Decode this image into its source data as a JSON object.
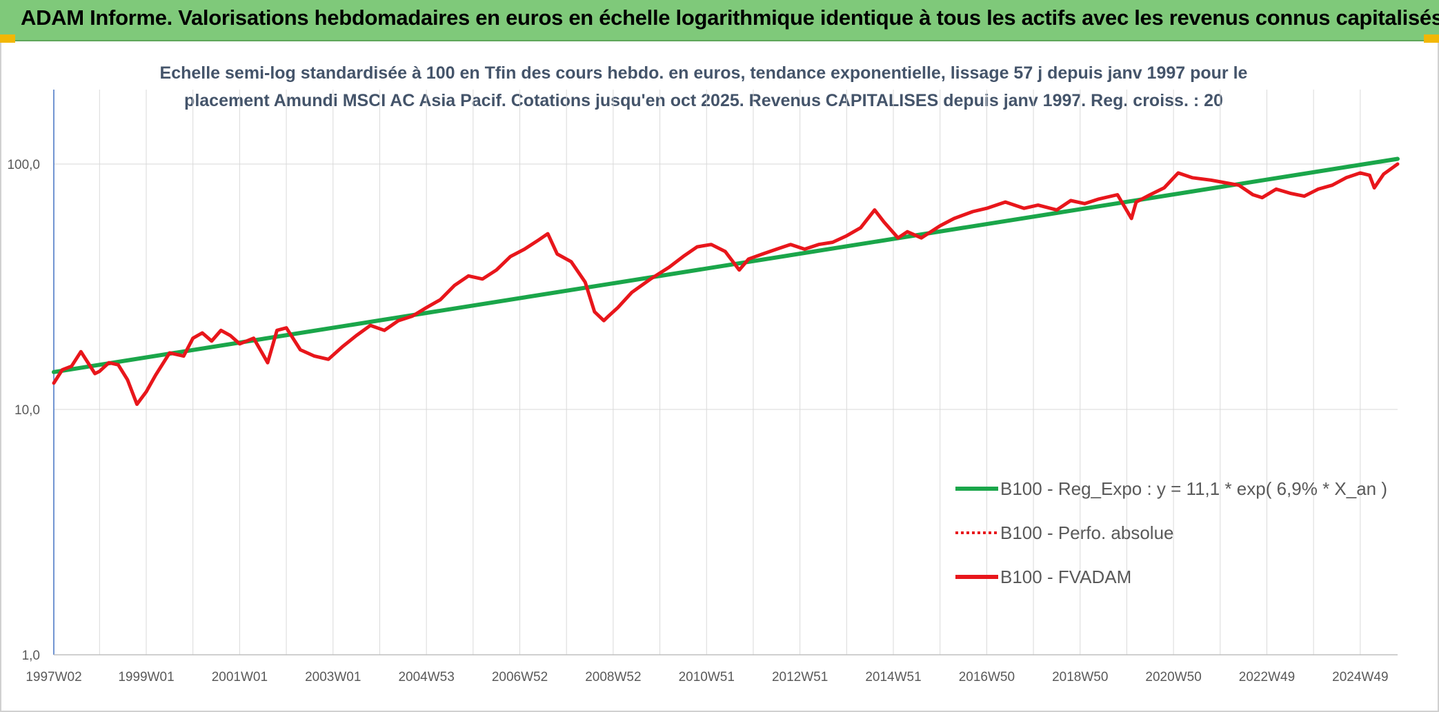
{
  "banner": {
    "title": "ADAM Informe. Valorisations hebdomadaires en euros en échelle logarithmique identique à tous les actifs avec les revenus connus capitalisés"
  },
  "colors": {
    "banner_bg": "#7fc97a",
    "accent_corner": "#f2b705",
    "series_trend": "#1aa64a",
    "series_fvadam": "#e8161b",
    "series_perfo": "#e8161b",
    "grid": "#d9d9d9",
    "axis": "#4472c4",
    "subtitle_text": "#44546a"
  },
  "chart_data": {
    "type": "line",
    "title_line1": "Echelle semi-log standardisée à 100 en Tfin des cours hebdo. en euros, tendance exponentielle, lissage 57 j depuis janv 1997 pour le",
    "title_line2": "placement Amundi MSCI AC Asia Pacif. Cotations jusqu'en oct 2025. Revenus CAPITALISES depuis janv 1997. Reg. croiss. : 20",
    "y_scale": "log",
    "ylim": [
      1,
      100
    ],
    "y_ticks": [
      {
        "value": 1,
        "label": "1,0"
      },
      {
        "value": 10,
        "label": "10,0"
      },
      {
        "value": 100,
        "label": "100,0"
      }
    ],
    "x_range": [
      1997.02,
      2025.8
    ],
    "x_ticks": [
      {
        "value": 1997.02,
        "label": "1997W02"
      },
      {
        "value": 1999.0,
        "label": "1999W01"
      },
      {
        "value": 2001.0,
        "label": "2001W01"
      },
      {
        "value": 2003.0,
        "label": "2003W01"
      },
      {
        "value": 2005.0,
        "label": "2004W53"
      },
      {
        "value": 2007.0,
        "label": "2006W52"
      },
      {
        "value": 2009.0,
        "label": "2008W52"
      },
      {
        "value": 2011.0,
        "label": "2010W51"
      },
      {
        "value": 2013.0,
        "label": "2012W51"
      },
      {
        "value": 2015.0,
        "label": "2014W51"
      },
      {
        "value": 2017.0,
        "label": "2016W50"
      },
      {
        "value": 2019.0,
        "label": "2018W50"
      },
      {
        "value": 2021.0,
        "label": "2020W50"
      },
      {
        "value": 2023.0,
        "label": "2022W49"
      },
      {
        "value": 2025.0,
        "label": "2024W49"
      }
    ],
    "grid": true,
    "legend_position": "bottom-right",
    "series": [
      {
        "name": "B100 - Reg_Expo : y = 11,1 * exp( 6,9% *  X_an )",
        "style": "solid-thick",
        "color": "#1aa64a",
        "x": [
          1997.02,
          2025.8
        ],
        "y": [
          14.2,
          105
        ]
      },
      {
        "name": "B100 - Perfo. absolue",
        "style": "dotted",
        "color": "#e8161b",
        "x": [],
        "y": []
      },
      {
        "name": "B100 - FVADAM",
        "style": "solid-thick",
        "color": "#e8161b",
        "x": [
          1997.02,
          1997.2,
          1997.4,
          1997.6,
          1997.9,
          1998.0,
          1998.2,
          1998.4,
          1998.6,
          1998.8,
          1999.0,
          1999.2,
          1999.5,
          1999.8,
          2000.0,
          2000.2,
          2000.4,
          2000.6,
          2000.8,
          2001.0,
          2001.3,
          2001.6,
          2001.8,
          2002.0,
          2002.3,
          2002.6,
          2002.9,
          2003.2,
          2003.5,
          2003.8,
          2004.1,
          2004.4,
          2004.7,
          2005.0,
          2005.3,
          2005.6,
          2005.9,
          2006.2,
          2006.5,
          2006.8,
          2007.1,
          2007.4,
          2007.6,
          2007.8,
          2008.1,
          2008.4,
          2008.6,
          2008.8,
          2008.9,
          2009.1,
          2009.4,
          2009.8,
          2010.2,
          2010.5,
          2010.8,
          2011.1,
          2011.4,
          2011.7,
          2011.9,
          2012.2,
          2012.5,
          2012.8,
          2013.1,
          2013.4,
          2013.7,
          2014.0,
          2014.3,
          2014.6,
          2014.8,
          2015.1,
          2015.3,
          2015.6,
          2016.0,
          2016.3,
          2016.7,
          2017.0,
          2017.4,
          2017.8,
          2018.1,
          2018.5,
          2018.8,
          2019.1,
          2019.4,
          2019.8,
          2020.1,
          2020.2,
          2020.5,
          2020.8,
          2021.1,
          2021.4,
          2021.8,
          2022.1,
          2022.4,
          2022.7,
          2022.9,
          2023.2,
          2023.5,
          2023.8,
          2024.1,
          2024.4,
          2024.7,
          2025.0,
          2025.2,
          2025.3,
          2025.5,
          2025.8
        ],
        "y": [
          12.8,
          14.5,
          15.0,
          17.2,
          14.0,
          14.3,
          15.5,
          15.2,
          13.2,
          10.5,
          11.8,
          13.8,
          17.0,
          16.5,
          19.5,
          20.5,
          19.0,
          21.0,
          20.0,
          18.5,
          19.5,
          15.5,
          21.0,
          21.5,
          17.5,
          16.5,
          16.0,
          18.0,
          20.0,
          22.0,
          21.0,
          23.0,
          24.0,
          26.0,
          28.0,
          32.0,
          35.0,
          34.0,
          37.0,
          42.0,
          45.0,
          49.0,
          52.0,
          43.0,
          40.0,
          33.0,
          25.0,
          23.0,
          24.0,
          26.0,
          30.0,
          34.0,
          38.0,
          42.0,
          46.0,
          47.0,
          44.0,
          37.0,
          41.0,
          43.0,
          45.0,
          47.0,
          45.0,
          47.0,
          48.0,
          51.0,
          55.0,
          65.0,
          58.0,
          50.0,
          53.0,
          50.0,
          56.0,
          60.0,
          64.0,
          66.0,
          70.0,
          66.0,
          68.0,
          65.0,
          71.0,
          69.0,
          72.0,
          75.0,
          60.0,
          70.0,
          75.0,
          80.0,
          92.0,
          88.0,
          86.0,
          84.0,
          82.0,
          75.0,
          73.0,
          79.0,
          76.0,
          74.0,
          79.0,
          82.0,
          88.0,
          92.0,
          90.0,
          80.0,
          91.0,
          100.0
        ]
      }
    ]
  }
}
